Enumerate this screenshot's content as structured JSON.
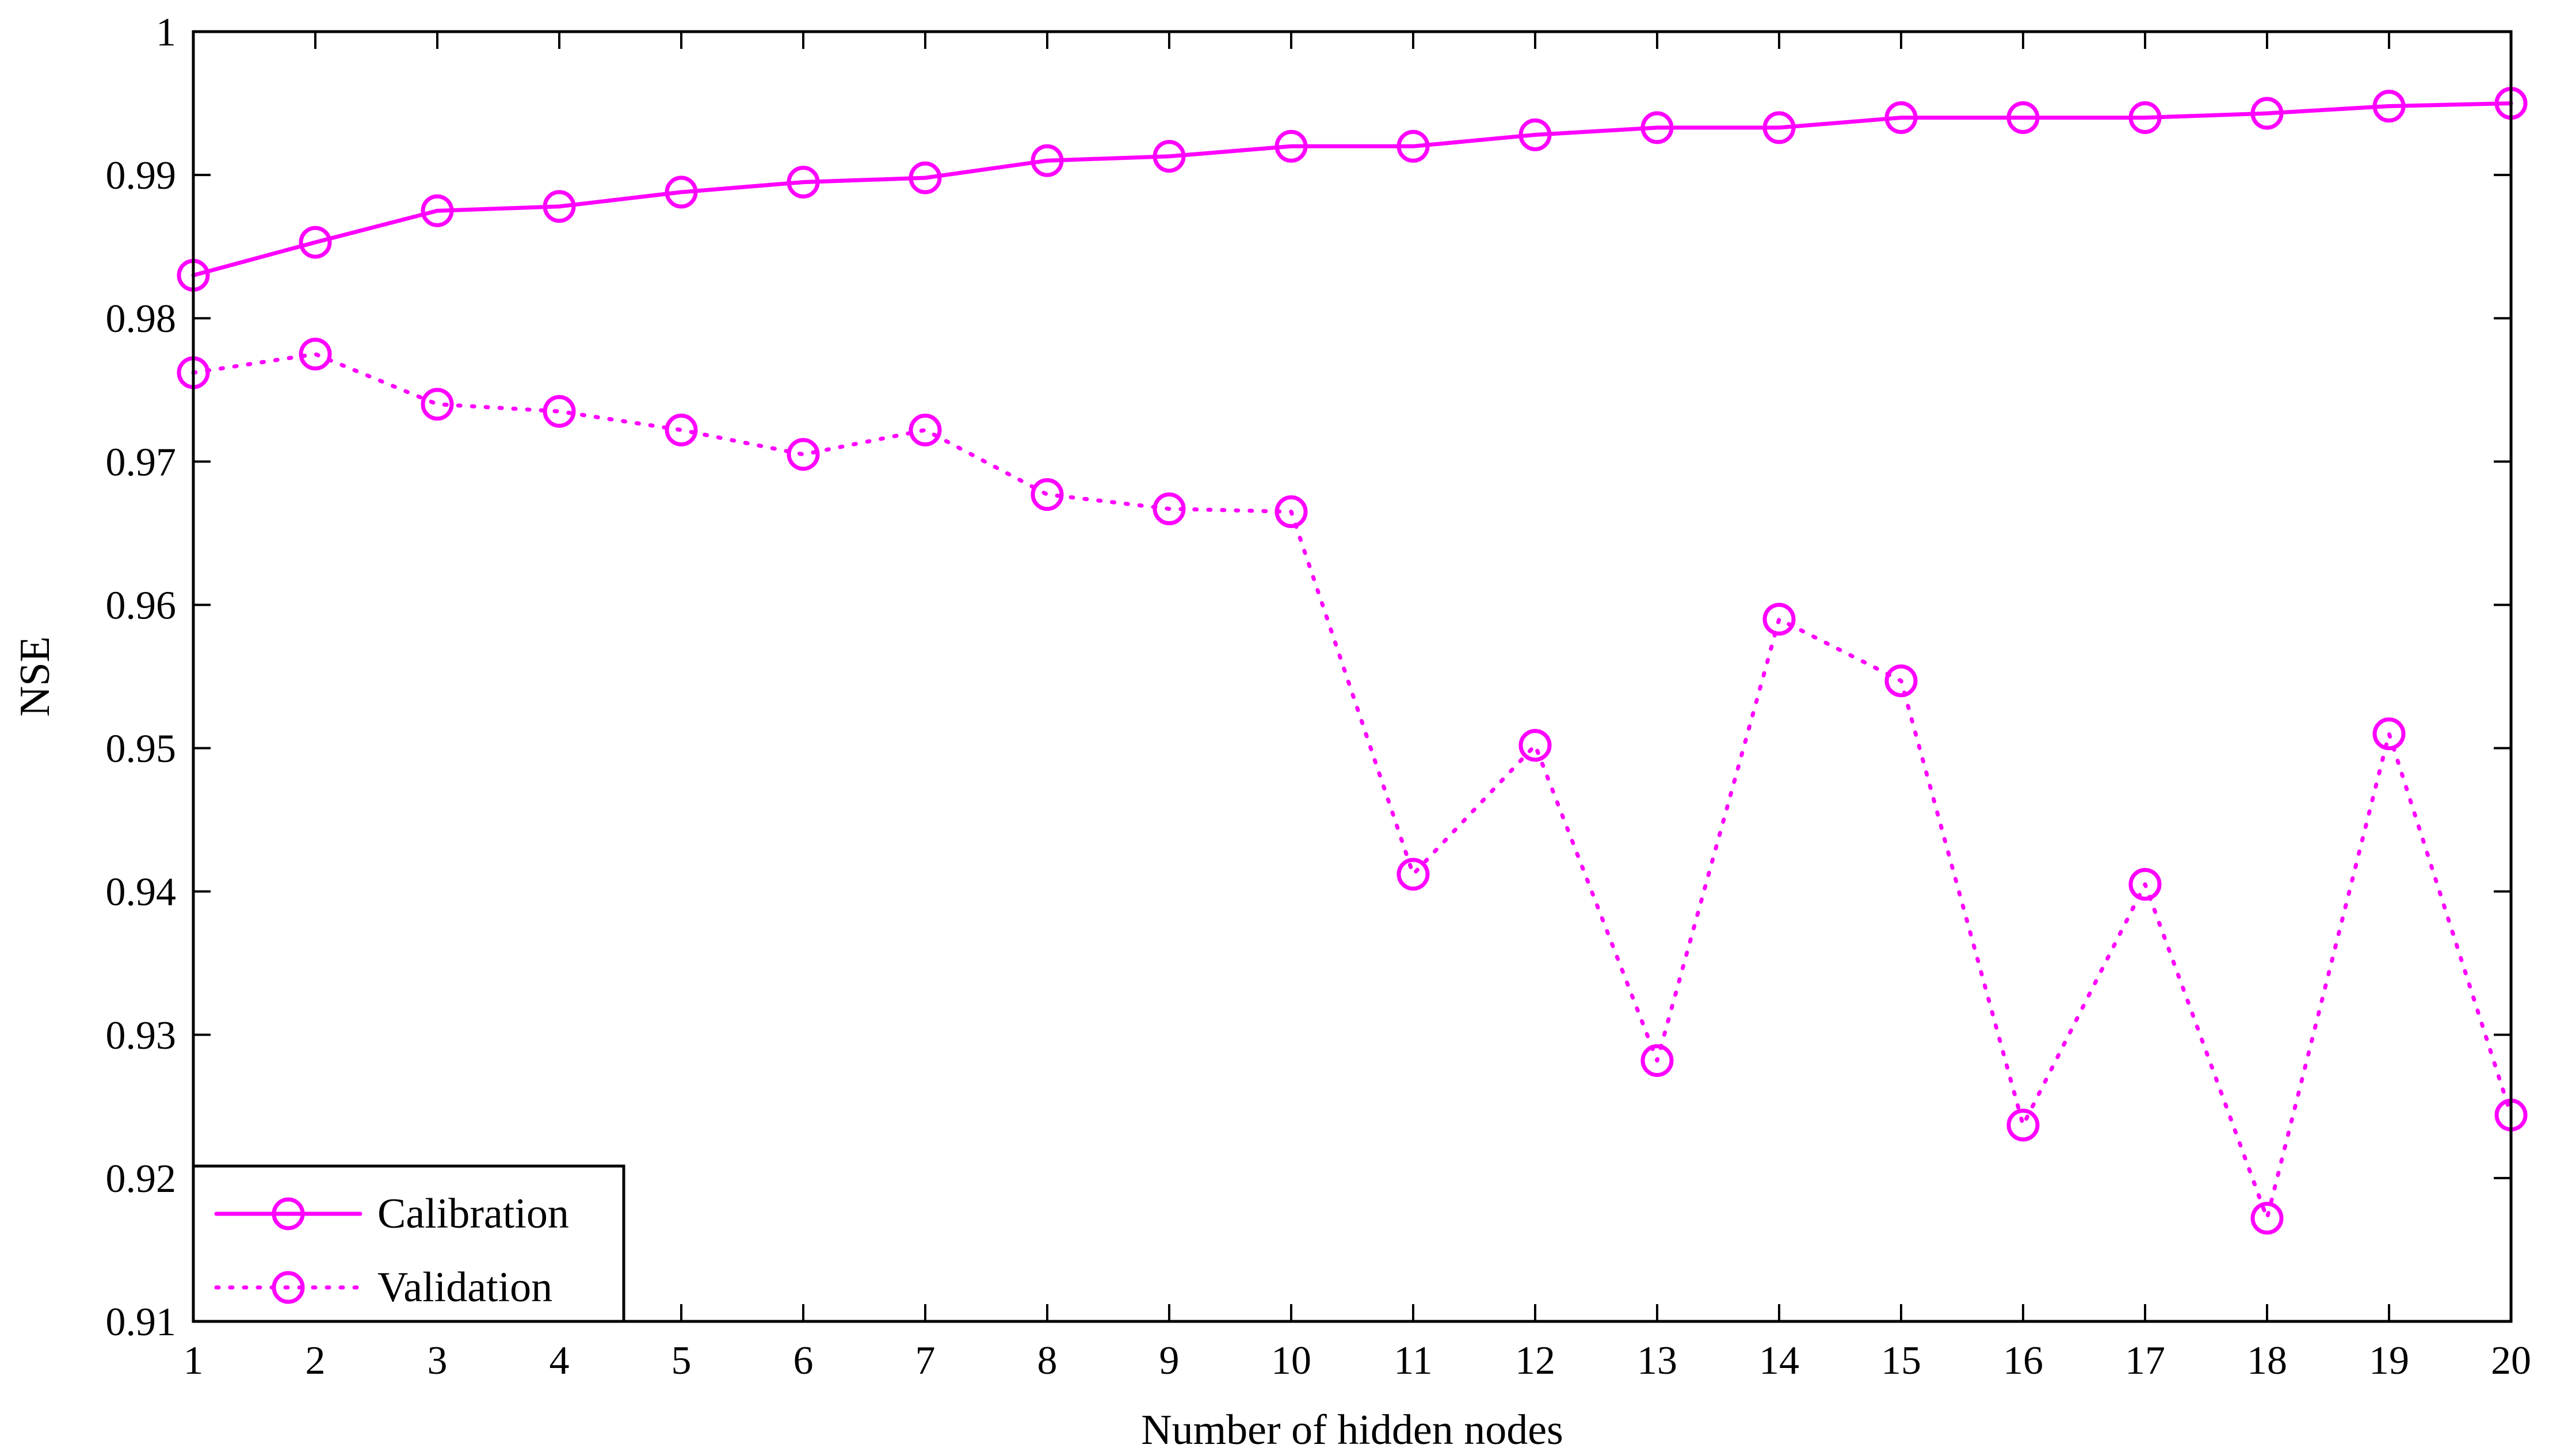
{
  "chart_data": {
    "type": "line",
    "title": "",
    "xlabel": "Number of hidden nodes",
    "ylabel": "NSE",
    "xlim": [
      1,
      20
    ],
    "ylim": [
      0.91,
      1.0
    ],
    "x_ticks": [
      "1",
      "2",
      "3",
      "4",
      "5",
      "6",
      "7",
      "8",
      "9",
      "10",
      "11",
      "12",
      "13",
      "14",
      "15",
      "16",
      "17",
      "18",
      "19",
      "20"
    ],
    "y_ticks": [
      "0.91",
      "0.92",
      "0.93",
      "0.94",
      "0.95",
      "0.96",
      "0.97",
      "0.98",
      "0.99",
      "1"
    ],
    "grid": false,
    "legend_position": "bottom-left",
    "color": "#ff00ff",
    "x": [
      1,
      2,
      3,
      4,
      5,
      6,
      7,
      8,
      9,
      10,
      11,
      12,
      13,
      14,
      15,
      16,
      17,
      18,
      19,
      20
    ],
    "series": [
      {
        "name": "Calibration",
        "line_style": "solid",
        "marker": "circle",
        "values": [
          0.983,
          0.9853,
          0.9875,
          0.9878,
          0.9888,
          0.9895,
          0.9898,
          0.991,
          0.9913,
          0.992,
          0.992,
          0.9928,
          0.9933,
          0.9933,
          0.994,
          0.994,
          0.994,
          0.9943,
          0.9948,
          0.995
        ]
      },
      {
        "name": "Validation",
        "line_style": "dotted",
        "marker": "circle",
        "values": [
          0.9762,
          0.9775,
          0.974,
          0.9735,
          0.9722,
          0.9705,
          0.9722,
          0.9677,
          0.9667,
          0.9665,
          0.9412,
          0.9502,
          0.9282,
          0.959,
          0.9547,
          0.9237,
          0.9405,
          0.9172,
          0.951,
          0.9244
        ]
      }
    ]
  }
}
